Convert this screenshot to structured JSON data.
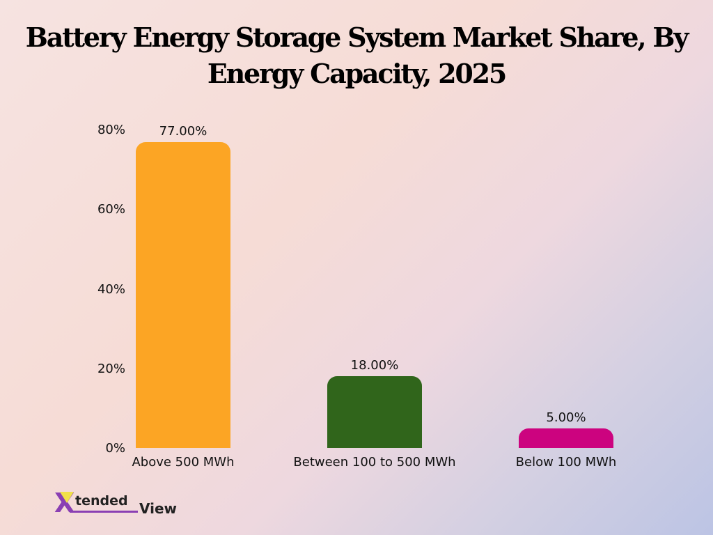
{
  "title": {
    "line1": "Battery Energy Storage System Market Share, By",
    "line2": "Energy Capacity, 2025"
  },
  "yaxis": {
    "ticks": [
      "0%",
      "20%",
      "40%",
      "60%",
      "80%"
    ]
  },
  "bars": [
    {
      "category": "Above 500 MWh",
      "value": 77,
      "label": "77.00%",
      "color": "#FCA524"
    },
    {
      "category": "Between 100 to 500 MWh",
      "value": 18,
      "label": "18.00%",
      "color": "#30651B"
    },
    {
      "category": "Below 100 MWh",
      "value": 5,
      "label": "5.00%",
      "color": "#CC037F"
    }
  ],
  "logo": {
    "x": "X",
    "tended": "tended",
    "view": "View"
  },
  "chart_data": {
    "type": "bar",
    "title": "Battery Energy Storage System Market Share, By Energy Capacity, 2025",
    "categories": [
      "Above 500 MWh",
      "Between 100 to 500 MWh",
      "Below 100 MWh"
    ],
    "values": [
      77.0,
      18.0,
      5.0
    ],
    "data_labels": [
      "77.00%",
      "18.00%",
      "5.00%"
    ],
    "colors": [
      "#FCA524",
      "#30651B",
      "#CC037F"
    ],
    "xlabel": "",
    "ylabel": "",
    "ylim": [
      0,
      80
    ],
    "yticks": [
      "0%",
      "20%",
      "40%",
      "60%",
      "80%"
    ],
    "grid": false,
    "legend": "none"
  }
}
